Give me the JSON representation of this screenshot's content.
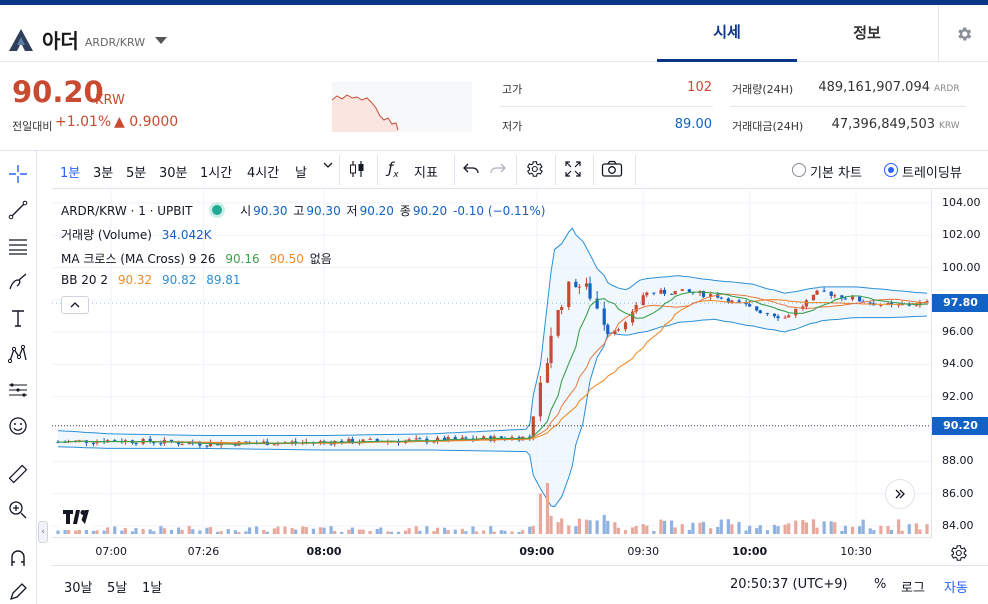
{
  "header": {
    "coin_name": "아더",
    "pair": "ARDR/KRW",
    "tabs": [
      "시세",
      "정보"
    ]
  },
  "price": {
    "current": "90.20",
    "unit": "KRW",
    "change_label": "전일대비",
    "change_rate": "+1.01%",
    "change_amount": "▲ 0.9000"
  },
  "stats": {
    "high_label": "고가",
    "high": "102",
    "low_label": "저가",
    "low": "89.00",
    "volume_label": "거래량(24H)",
    "volume": "489,161,907.094",
    "volume_unit": "ARDR",
    "amount_label": "거래대금(24H)",
    "amount": "47,396,849,503",
    "amount_unit": "KRW"
  },
  "toolbar": {
    "intervals": [
      "1분",
      "3분",
      "5분",
      "30분",
      "1시간",
      "4시간",
      "날"
    ],
    "indicator_label": "지표",
    "basic_chart": "기본 차트",
    "tradingview": "트레이딩뷰"
  },
  "legend": {
    "symbol": "ARDR/KRW · 1 · UPBIT",
    "ohlc_o_label": "시",
    "ohlc_o": "90.30",
    "ohlc_h_label": "고",
    "ohlc_h": "90.30",
    "ohlc_l_label": "저",
    "ohlc_l": "90.20",
    "ohlc_c_label": "종",
    "ohlc_c": "90.20",
    "ohlc_change": "-0.10 (−0.11%)",
    "volume_name": "거래량 (Volume)",
    "volume_value": "34.042K",
    "ma_name": "MA 크로스 (MA Cross) 9 26",
    "ma_fast": "90.16",
    "ma_slow": "90.50",
    "ma_extra": "없음",
    "bb_name": "BB 20 2",
    "bb_basis": "90.32",
    "bb_upper": "90.82",
    "bb_lower": "89.81"
  },
  "colors": {
    "up": "#c84a31",
    "down": "#1261c4",
    "brand": "#093687",
    "ma_fast": "#3ca04b",
    "ma_slow": "#f08c2a",
    "bb": "#2a8fd6",
    "vol_up": "#e8a89b",
    "vol_down": "#8fb2e0"
  },
  "price_axis": {
    "ticks": [
      "104.00",
      "102.00",
      "100.00",
      "98.00",
      "96.00",
      "94.00",
      "92.00",
      "90.00",
      "88.00",
      "86.00",
      "84.00"
    ],
    "last_tag": "97.80",
    "cross_tag": "90.20"
  },
  "time_axis": {
    "ticks": [
      "07:00",
      "07:26",
      "08:00",
      "09:00",
      "09:30",
      "10:00",
      "10:30"
    ]
  },
  "bottom": {
    "ranges": [
      "30날",
      "5날",
      "1날"
    ],
    "clock": "20:50:37 (UTC+9)",
    "percent": "%",
    "log": "로그",
    "auto": "자동"
  },
  "chart_data": {
    "type": "candlestick",
    "symbol": "ARDR/KRW",
    "interval": "1",
    "ylim": [
      83.5,
      104.8
    ],
    "x": [
      "06:45",
      "07:00",
      "07:26",
      "08:00",
      "08:30",
      "08:58",
      "09:00",
      "09:05",
      "09:10",
      "09:15",
      "09:20",
      "09:25",
      "09:30",
      "09:40",
      "09:50",
      "10:00",
      "10:10",
      "10:20",
      "10:30",
      "10:40",
      "10:50"
    ],
    "close": [
      89.2,
      89.3,
      89.1,
      89.2,
      89.3,
      89.5,
      91.5,
      96.8,
      99.2,
      98.5,
      96.0,
      96.5,
      98.4,
      98.5,
      98.3,
      97.5,
      96.9,
      98.5,
      98.0,
      97.6,
      97.8
    ],
    "series": [
      {
        "name": "BB upper",
        "values": [
          89.9,
          89.7,
          89.6,
          89.6,
          89.7,
          90.0,
          93.0,
          101.0,
          102.5,
          100.8,
          99.0,
          98.6,
          99.3,
          99.5,
          99.2,
          99.0,
          98.4,
          98.8,
          98.8,
          98.6,
          98.4
        ]
      },
      {
        "name": "BB lower",
        "values": [
          88.9,
          88.8,
          88.8,
          88.7,
          88.7,
          88.6,
          86.5,
          85.0,
          87.5,
          93.0,
          96.0,
          95.8,
          96.0,
          96.6,
          96.8,
          96.4,
          96.0,
          96.7,
          96.9,
          96.9,
          97.0
        ]
      }
    ]
  }
}
